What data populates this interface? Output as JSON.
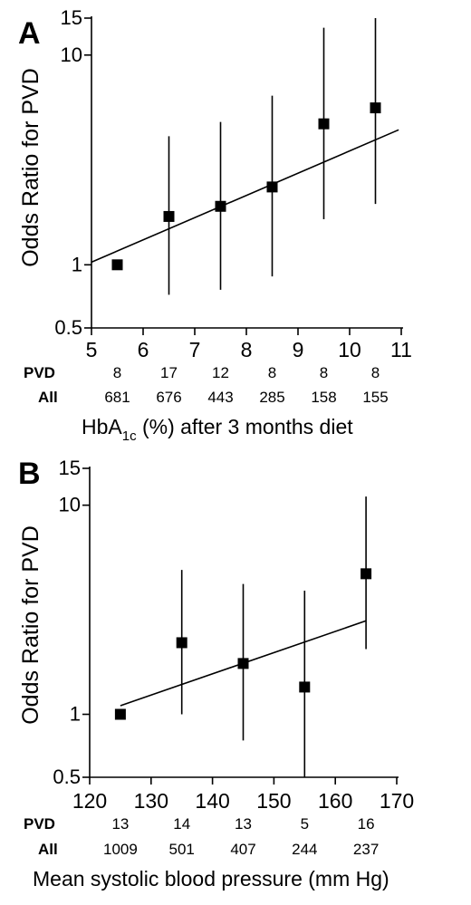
{
  "chart_data": [
    {
      "type": "scatter",
      "panel_label": "A",
      "ylabel": "Odds Ratio for PVD",
      "xlabel_main": "HbA",
      "xlabel_sub": "1c",
      "xlabel_rest": " (%) after 3 months diet",
      "y_scale": "log",
      "ylim": [
        0.5,
        15
      ],
      "yticks": [
        0.5,
        1,
        10,
        15
      ],
      "ytick_labels": [
        "0.5",
        "1",
        "10",
        "15"
      ],
      "xlim": [
        5,
        11
      ],
      "xticks": [
        5,
        6,
        7,
        8,
        9,
        10,
        11
      ],
      "xtick_labels": [
        "5",
        "6",
        "7",
        "8",
        "9",
        "10",
        "11"
      ],
      "points": [
        {
          "x": 5.5,
          "y": 1.0,
          "lo": null,
          "hi": null
        },
        {
          "x": 6.5,
          "y": 1.7,
          "lo": 0.72,
          "hi": 4.1
        },
        {
          "x": 7.5,
          "y": 1.9,
          "lo": 0.76,
          "hi": 4.8
        },
        {
          "x": 8.5,
          "y": 2.35,
          "lo": 0.88,
          "hi": 6.4
        },
        {
          "x": 9.5,
          "y": 4.7,
          "lo": 1.65,
          "hi": 13.5
        },
        {
          "x": 10.5,
          "y": 5.6,
          "lo": 1.95,
          "hi": 16.0
        }
      ],
      "trend": {
        "x": [
          5,
          10.95
        ],
        "y": [
          1.03,
          4.4
        ]
      },
      "table": {
        "row1_label": "PVD",
        "row1": [
          "8",
          "17",
          "12",
          "8",
          "8",
          "8"
        ],
        "row2_label": "All",
        "row2": [
          "681",
          "676",
          "443",
          "285",
          "158",
          "155"
        ]
      }
    },
    {
      "type": "scatter",
      "panel_label": "B",
      "ylabel": "Odds Ratio for PVD",
      "xlabel_main": "Mean systolic blood pressure (mm Hg)",
      "xlabel_sub": "",
      "xlabel_rest": "",
      "y_scale": "log",
      "ylim": [
        0.5,
        15
      ],
      "yticks": [
        0.5,
        1,
        10,
        15
      ],
      "ytick_labels": [
        "0.5",
        "1",
        "10",
        "15"
      ],
      "xlim": [
        120,
        170
      ],
      "xticks": [
        120,
        130,
        140,
        150,
        160,
        170
      ],
      "xtick_labels": [
        "120",
        "130",
        "140",
        "150",
        "160",
        "170"
      ],
      "points": [
        {
          "x": 125,
          "y": 1.0,
          "lo": null,
          "hi": null
        },
        {
          "x": 135,
          "y": 2.2,
          "lo": 1.0,
          "hi": 4.9
        },
        {
          "x": 145,
          "y": 1.75,
          "lo": 0.75,
          "hi": 4.2
        },
        {
          "x": 155,
          "y": 1.35,
          "lo": 0.45,
          "hi": 3.9
        },
        {
          "x": 165,
          "y": 4.7,
          "lo": 2.05,
          "hi": 11.0
        }
      ],
      "trend": {
        "x": [
          125,
          165
        ],
        "y": [
          1.1,
          2.8
        ]
      },
      "table": {
        "row1_label": "PVD",
        "row1": [
          "13",
          "14",
          "13",
          "5",
          "16"
        ],
        "row2_label": "All",
        "row2": [
          "1009",
          "501",
          "407",
          "244",
          "237"
        ]
      }
    }
  ]
}
